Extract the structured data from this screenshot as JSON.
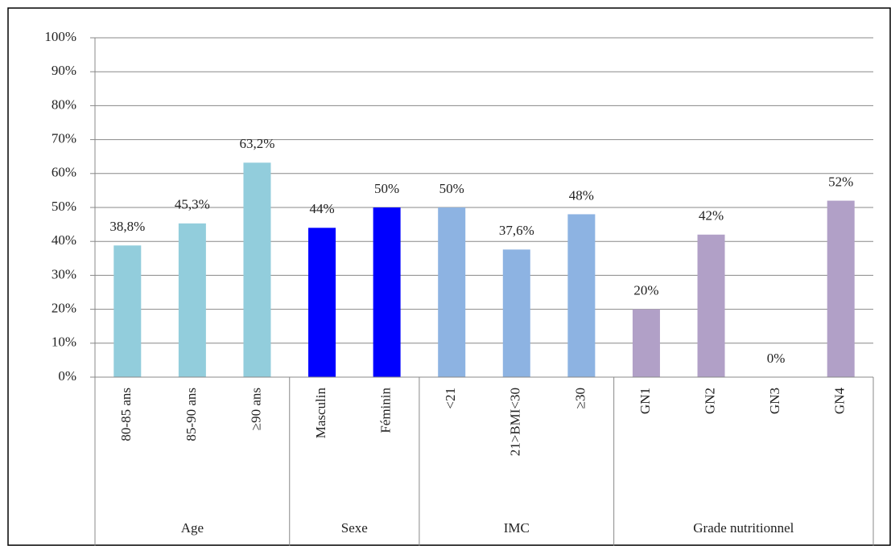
{
  "chart_data": {
    "type": "bar",
    "series": [
      {
        "name": "Age",
        "color": "#92cddc",
        "categories": [
          "80-85 ans",
          "85-90 ans",
          "≥90 ans"
        ],
        "values": [
          38.8,
          45.3,
          63.2
        ],
        "value_labels": [
          "38,8%",
          "45,3%",
          "63,2%"
        ]
      },
      {
        "name": "Sexe",
        "color": "#0000ff",
        "categories": [
          "Masculin",
          "Féminin"
        ],
        "values": [
          44,
          50
        ],
        "value_labels": [
          "44%",
          "50%"
        ]
      },
      {
        "name": "IMC",
        "color": "#8db3e2",
        "categories": [
          "<21",
          "21>BMI<30",
          "≥30"
        ],
        "values": [
          50,
          37.6,
          48
        ],
        "value_labels": [
          "50%",
          "37,6%",
          "48%"
        ]
      },
      {
        "name": "Grade nutritionnel",
        "color": "#b1a0c7",
        "categories": [
          "GN1",
          "GN2",
          "GN3",
          "GN4"
        ],
        "values": [
          20,
          42,
          0,
          52
        ],
        "value_labels": [
          "20%",
          "42%",
          "0%",
          "52%"
        ]
      }
    ],
    "ylim": [
      0,
      100
    ],
    "yticks": [
      {
        "value": 0,
        "label": "0%"
      },
      {
        "value": 10,
        "label": "10%"
      },
      {
        "value": 20,
        "label": "20%"
      },
      {
        "value": 30,
        "label": "30%"
      },
      {
        "value": 40,
        "label": "40%"
      },
      {
        "value": 50,
        "label": "50%"
      },
      {
        "value": 60,
        "label": "60%"
      },
      {
        "value": 70,
        "label": "70%"
      },
      {
        "value": 80,
        "label": "80%"
      },
      {
        "value": 90,
        "label": "90%"
      },
      {
        "value": 100,
        "label": "100%"
      }
    ],
    "grid": true
  }
}
